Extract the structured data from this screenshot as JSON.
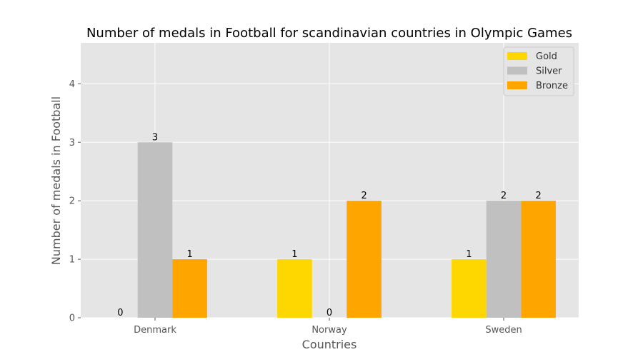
{
  "chart_data": {
    "type": "bar",
    "title": "Number of medals in Football for scandinavian countries in Olympic Games",
    "xlabel": "Countries",
    "ylabel": "Number of medals in Football",
    "categories": [
      "Denmark",
      "Norway",
      "Sweden"
    ],
    "series": [
      {
        "name": "Gold",
        "values": [
          0,
          1,
          1
        ],
        "color": "#FFD700"
      },
      {
        "name": "Silver",
        "values": [
          3,
          0,
          2
        ],
        "color": "#C0C0C0"
      },
      {
        "name": "Bronze",
        "values": [
          1,
          2,
          2
        ],
        "color": "#FFA500"
      }
    ],
    "ylim": [
      0,
      4.7
    ],
    "yticks": [
      0,
      1,
      2,
      3,
      4
    ],
    "grid": true,
    "legend_position": "top-right",
    "plot_background": "#E5E5E5"
  }
}
